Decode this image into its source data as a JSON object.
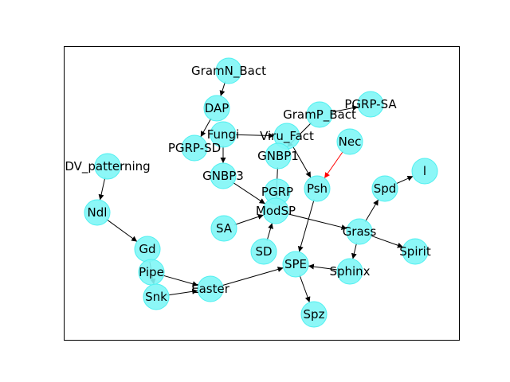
{
  "node_color": "#7ff6f6",
  "edge_color": "#000000",
  "highlight_edge_color": "#ff0000",
  "nodes": [
    {
      "id": "GramN_Bact",
      "label": "GramN_Bact"
    },
    {
      "id": "DAP",
      "label": "DAP"
    },
    {
      "id": "PGRP-SA",
      "label": "PGRP-SA"
    },
    {
      "id": "GramP_Bact",
      "label": "GramP_Bact"
    },
    {
      "id": "Fungi",
      "label": "Fungi"
    },
    {
      "id": "Viru_Fact",
      "label": "Viru_Fact"
    },
    {
      "id": "PGRP-SD",
      "label": "PGRP-SD"
    },
    {
      "id": "Nec",
      "label": "Nec"
    },
    {
      "id": "GNBP1",
      "label": "GNBP1"
    },
    {
      "id": "DV_patterning",
      "label": "DV_patterning"
    },
    {
      "id": "GNBP3",
      "label": "GNBP3"
    },
    {
      "id": "l",
      "label": "l"
    },
    {
      "id": "Psh",
      "label": "Psh"
    },
    {
      "id": "Spd",
      "label": "Spd"
    },
    {
      "id": "PGRP",
      "label": "PGRP"
    },
    {
      "id": "Ndl",
      "label": "Ndl"
    },
    {
      "id": "ModSP",
      "label": "ModSP"
    },
    {
      "id": "SA",
      "label": "SA"
    },
    {
      "id": "Grass",
      "label": "Grass"
    },
    {
      "id": "Gd",
      "label": "Gd"
    },
    {
      "id": "Spirit",
      "label": "Spirit"
    },
    {
      "id": "SD",
      "label": "SD"
    },
    {
      "id": "SPE",
      "label": "SPE"
    },
    {
      "id": "Pipe",
      "label": "Pipe"
    },
    {
      "id": "Sphinx",
      "label": "Sphinx"
    },
    {
      "id": "Easter",
      "label": "Easter"
    },
    {
      "id": "Snk",
      "label": "Snk"
    },
    {
      "id": "Spz",
      "label": "Spz"
    }
  ],
  "edges": [
    {
      "from": "GramN_Bact",
      "to": "DAP",
      "color": "#000000"
    },
    {
      "from": "DAP",
      "to": "PGRP-SD",
      "color": "#000000"
    },
    {
      "from": "Fungi",
      "to": "GNBP3",
      "color": "#000000"
    },
    {
      "from": "Fungi",
      "to": "Viru_Fact",
      "color": "#000000"
    },
    {
      "from": "GramP_Bact",
      "to": "PGRP-SA",
      "color": "#000000"
    },
    {
      "from": "GramP_Bact",
      "to": "GNBP1",
      "color": "#000000"
    },
    {
      "from": "Viru_Fact",
      "to": "Psh",
      "color": "#000000"
    },
    {
      "from": "Nec",
      "to": "Psh",
      "color": "#ff0000"
    },
    {
      "from": "GNBP1",
      "to": "ModSP",
      "color": "#000000"
    },
    {
      "from": "GNBP3",
      "to": "ModSP",
      "color": "#000000"
    },
    {
      "from": "SA",
      "to": "ModSP",
      "color": "#000000"
    },
    {
      "from": "SD",
      "to": "ModSP",
      "color": "#000000"
    },
    {
      "from": "ModSP",
      "to": "Grass",
      "color": "#000000"
    },
    {
      "from": "Psh",
      "to": "SPE",
      "color": "#000000"
    },
    {
      "from": "Grass",
      "to": "Spd",
      "color": "#000000"
    },
    {
      "from": "Grass",
      "to": "Spirit",
      "color": "#000000"
    },
    {
      "from": "Grass",
      "to": "Sphinx",
      "color": "#000000"
    },
    {
      "from": "Spd",
      "to": "l",
      "color": "#000000"
    },
    {
      "from": "Sphinx",
      "to": "SPE",
      "color": "#000000"
    },
    {
      "from": "SPE",
      "to": "Spz",
      "color": "#000000"
    },
    {
      "from": "DV_patterning",
      "to": "Ndl",
      "color": "#000000"
    },
    {
      "from": "Ndl",
      "to": "Gd",
      "color": "#000000"
    },
    {
      "from": "Gd",
      "to": "Snk",
      "color": "#000000"
    },
    {
      "from": "Pipe",
      "to": "Easter",
      "color": "#000000"
    },
    {
      "from": "Snk",
      "to": "Easter",
      "color": "#000000"
    },
    {
      "from": "Easter",
      "to": "SPE",
      "color": "#000000"
    }
  ]
}
